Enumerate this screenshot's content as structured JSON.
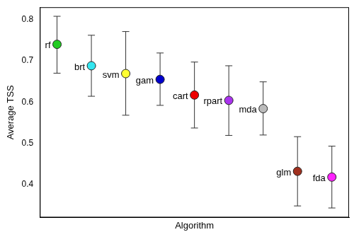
{
  "chart_data": {
    "type": "scatter",
    "x_label": "Algorithm",
    "y_label": "Average TSS",
    "categories": [
      "rf",
      "brt",
      "svm",
      "gam",
      "cart",
      "rpart",
      "mda",
      "glm",
      "fda"
    ],
    "values": [
      0.74,
      0.688,
      0.669,
      0.655,
      0.617,
      0.604,
      0.584,
      0.432,
      0.418
    ],
    "error_bars": {
      "lower": [
        0.67,
        0.614,
        0.568,
        0.592,
        0.537,
        0.519,
        0.52,
        0.348,
        0.343
      ],
      "upper": [
        0.808,
        0.762,
        0.771,
        0.719,
        0.697,
        0.688,
        0.649,
        0.516,
        0.493
      ]
    },
    "colors": [
      "#22cc22",
      "#33e6f0",
      "#ffff33",
      "#0000cc",
      "#ee0000",
      "#aa33ee",
      "#bbbbbb",
      "#a0301e",
      "#ff22ff"
    ],
    "ylim": [
      0.32,
      0.83
    ],
    "yticks": [
      0.4,
      0.5,
      0.6,
      0.7,
      0.8
    ],
    "grid": false,
    "tick_labels": "y",
    "marker": "circle"
  }
}
